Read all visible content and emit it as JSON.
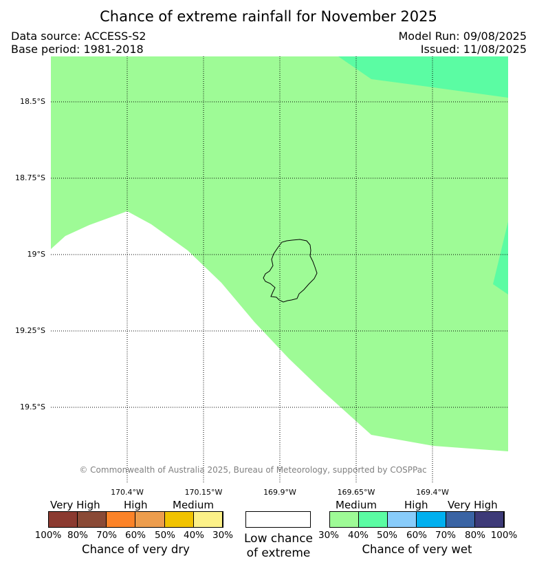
{
  "header": {
    "title": "Chance of extreme rainfall for November 2025",
    "data_source": "Data source: ACCESS-S2",
    "base_period": "Base period: 1981-2018",
    "model_run": "Model Run: 09/08/2025",
    "issued": "Issued: 11/08/2025"
  },
  "map": {
    "lat_labels": [
      "18.5°S",
      "18.75°S",
      "19°S",
      "19.25°S",
      "19.5°S"
    ],
    "lon_labels": [
      "170.4°W",
      "170.15°W",
      "169.9°W",
      "169.65°W",
      "169.4°W"
    ],
    "copyright": "© Commonwealth of Australia 2025, Bureau of Meteorology, supported by COSPPac",
    "regions": [
      {
        "category": "wet-medium",
        "color": "#9efb96"
      },
      {
        "category": "wet-high-40-50",
        "color": "#5bfca3"
      },
      {
        "category": "low-chance",
        "color": "#ffffff"
      }
    ],
    "land": "Niue"
  },
  "legend": {
    "dry": {
      "groups": [
        "Very High",
        "High",
        "Medium"
      ],
      "colors": [
        "#8b3a30",
        "#8a4a36",
        "#fc8328",
        "#ed9d4d",
        "#f1c300",
        "#fcf188"
      ],
      "ticks": [
        "100%",
        "80%",
        "70%",
        "60%",
        "50%",
        "40%",
        "30%"
      ],
      "title": "Chance of very dry"
    },
    "low": {
      "line1": "Low chance",
      "line2": "of extreme"
    },
    "wet": {
      "groups": [
        "Medium",
        "High",
        "Very High"
      ],
      "colors": [
        "#9efb96",
        "#5bfca3",
        "#88ccfb",
        "#00b0f0",
        "#3a64a4",
        "#3d3a78"
      ],
      "ticks": [
        "30%",
        "40%",
        "50%",
        "60%",
        "70%",
        "80%",
        "100%"
      ],
      "title": "Chance of very wet"
    }
  }
}
